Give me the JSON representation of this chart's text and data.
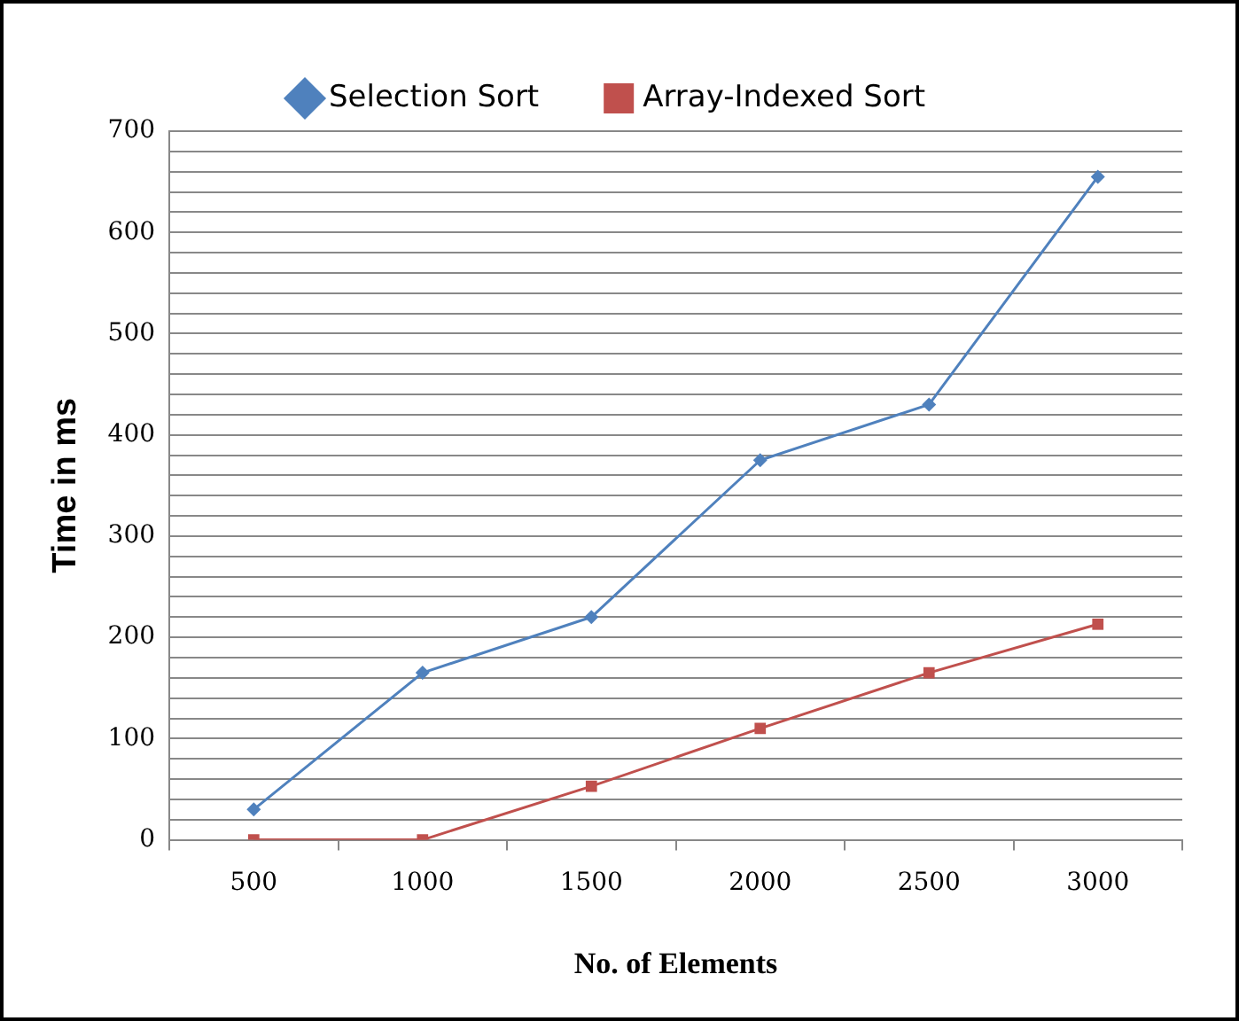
{
  "chart_data": {
    "type": "line",
    "xlabel": "No. of Elements",
    "ylabel": "Time in ms",
    "categories": [
      "500",
      "1000",
      "1500",
      "2000",
      "2500",
      "3000"
    ],
    "series": [
      {
        "name": "Selection Sort",
        "color": "#4f81bd",
        "marker": "diamond",
        "values": [
          30,
          165,
          220,
          375,
          430,
          655
        ]
      },
      {
        "name": "Array-Indexed Sort",
        "color": "#c0504d",
        "marker": "square",
        "values": [
          0,
          0,
          53,
          110,
          165,
          213
        ]
      }
    ],
    "ylim": [
      0,
      700
    ],
    "yticks": [
      0,
      {
        "value": 20,
        "label": null
      },
      {
        "value": 40,
        "label": null
      },
      {
        "value": 60,
        "label": null
      },
      {
        "value": 80,
        "label": null
      },
      100,
      {
        "value": 120,
        "label": null
      },
      {
        "value": 140,
        "label": null
      },
      {
        "value": 160,
        "label": null
      },
      {
        "value": 180,
        "label": null
      },
      200,
      {
        "value": 220,
        "label": null
      },
      {
        "value": 240,
        "label": null
      },
      {
        "value": 260,
        "label": null
      },
      {
        "value": 280,
        "label": null
      },
      300,
      {
        "value": 320,
        "label": null
      },
      {
        "value": 340,
        "label": null
      },
      {
        "value": 360,
        "label": null
      },
      {
        "value": 380,
        "label": null
      },
      400,
      {
        "value": 420,
        "label": null
      },
      {
        "value": 440,
        "label": null
      },
      {
        "value": 460,
        "label": null
      },
      {
        "value": 480,
        "label": null
      },
      500,
      {
        "value": 520,
        "label": null
      },
      {
        "value": 540,
        "label": null
      },
      {
        "value": 560,
        "label": null
      },
      {
        "value": 580,
        "label": null
      },
      600,
      {
        "value": 620,
        "label": null
      },
      {
        "value": 640,
        "label": null
      },
      {
        "value": 660,
        "label": null
      },
      {
        "value": 680,
        "label": null
      },
      700
    ],
    "grid": "y",
    "legend": "top",
    "line_style": "solid"
  }
}
